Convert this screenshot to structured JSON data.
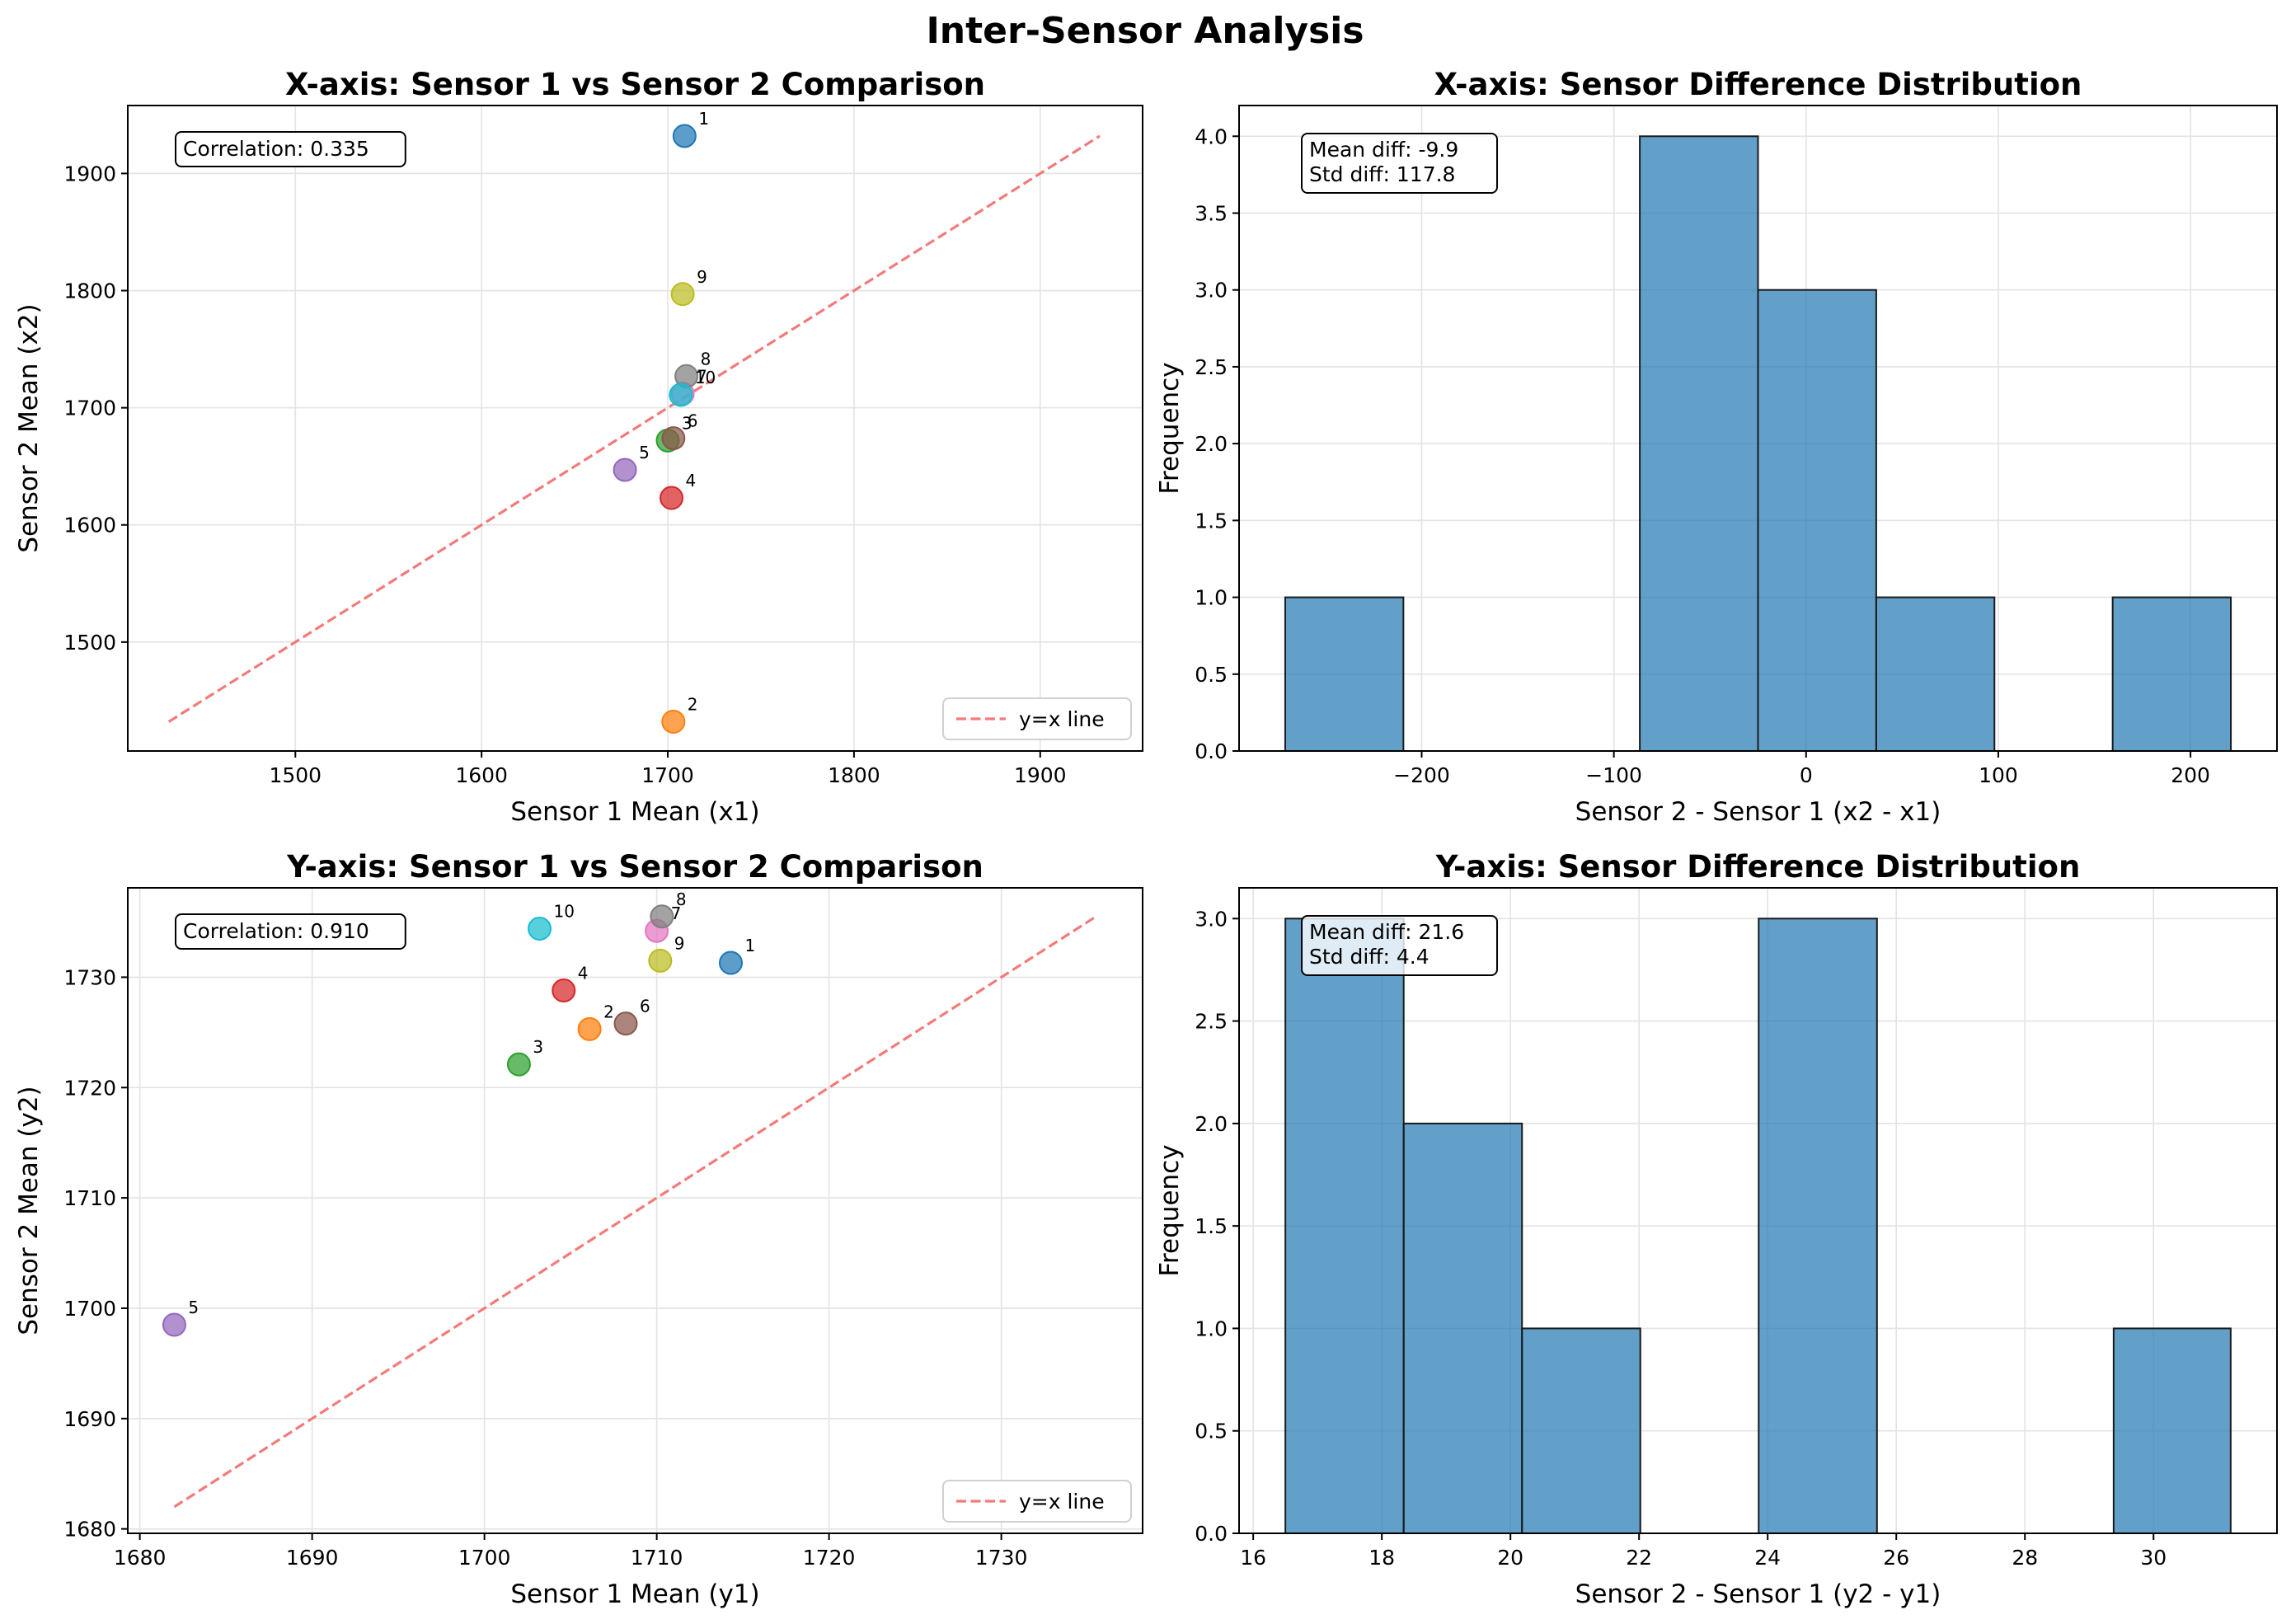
{
  "figure": {
    "title": "Inter-Sensor Analysis"
  },
  "chart_data": [
    {
      "type": "scatter",
      "title": "X-axis: Sensor 1 vs Sensor 2 Comparison",
      "xlabel": "Sensor 1 Mean (x1)",
      "ylabel": "Sensor 2 Mean (x2)",
      "xlim": [
        1410,
        1955
      ],
      "ylim": [
        1407,
        1958
      ],
      "xticks": [
        1500,
        1600,
        1700,
        1800,
        1900
      ],
      "yticks": [
        1500,
        1600,
        1700,
        1800,
        1900
      ],
      "grid": true,
      "legend": {
        "position": "lower-right",
        "entries": [
          "y=x line"
        ]
      },
      "reference_line": {
        "label": "y=x line",
        "color": "#f47a7a",
        "from": [
          1432,
          1432
        ],
        "to": [
          1932,
          1932
        ]
      },
      "annotation": "Correlation: 0.335",
      "points": [
        {
          "label": "1",
          "x": 1709,
          "y": 1932,
          "color": "#1f77b4"
        },
        {
          "label": "2",
          "x": 1703,
          "y": 1432,
          "color": "#ff7f0e"
        },
        {
          "label": "3",
          "x": 1700,
          "y": 1672,
          "color": "#2ca02c"
        },
        {
          "label": "4",
          "x": 1702,
          "y": 1623,
          "color": "#d62728"
        },
        {
          "label": "5",
          "x": 1677,
          "y": 1647,
          "color": "#9467bd"
        },
        {
          "label": "6",
          "x": 1703,
          "y": 1674,
          "color": "#8c564b"
        },
        {
          "label": "7",
          "x": 1708,
          "y": 1712,
          "color": "#e377c2"
        },
        {
          "label": "8",
          "x": 1710,
          "y": 1727,
          "color": "#7f7f7f"
        },
        {
          "label": "9",
          "x": 1708,
          "y": 1797,
          "color": "#bcbd22"
        },
        {
          "label": "10",
          "x": 1707,
          "y": 1711,
          "color": "#17becf"
        }
      ]
    },
    {
      "type": "bar",
      "title": "X-axis: Sensor Difference Distribution",
      "xlabel": "Sensor 2 - Sensor 1 (x2 - x1)",
      "ylabel": "Frequency",
      "xlim": [
        -295,
        245
      ],
      "ylim": [
        0,
        4.2
      ],
      "xticks": [
        -200,
        -100,
        0,
        100,
        200
      ],
      "xtick_labels": [
        "−200",
        "−100",
        "0",
        "100",
        "200"
      ],
      "yticks": [
        0,
        0.5,
        1,
        1.5,
        2,
        2.5,
        3,
        3.5,
        4
      ],
      "ytick_labels": [
        "0.0",
        "0.5",
        "1.0",
        "1.5",
        "2.0",
        "2.5",
        "3.0",
        "3.5",
        "4.0"
      ],
      "grid": true,
      "bar_color": "#1f77b4",
      "bin_edges": [
        -271,
        -209.5,
        -148,
        -86.5,
        -25,
        36.5,
        98,
        159.5,
        221
      ],
      "counts": [
        1,
        0,
        0,
        4,
        3,
        1,
        0,
        1
      ],
      "annotation_lines": [
        "Mean diff: -9.9",
        "Std diff: 117.8"
      ]
    },
    {
      "type": "scatter",
      "title": "Y-axis: Sensor 1 vs Sensor 2 Comparison",
      "xlabel": "Sensor 1 Mean (y1)",
      "ylabel": "Sensor 2 Mean (y2)",
      "xlim": [
        1679.3,
        1738.2
      ],
      "ylim": [
        1679.6,
        1738.1
      ],
      "xticks": [
        1680,
        1690,
        1700,
        1710,
        1720,
        1730
      ],
      "yticks": [
        1680,
        1690,
        1700,
        1710,
        1720,
        1730
      ],
      "grid": true,
      "legend": {
        "position": "lower-right",
        "entries": [
          "y=x line"
        ]
      },
      "reference_line": {
        "label": "y=x line",
        "color": "#f47a7a",
        "from": [
          1682,
          1682
        ],
        "to": [
          1735.5,
          1735.5
        ]
      },
      "annotation": "Correlation: 0.910",
      "points": [
        {
          "label": "1",
          "x": 1714.3,
          "y": 1731.3,
          "color": "#1f77b4"
        },
        {
          "label": "2",
          "x": 1706.1,
          "y": 1725.3,
          "color": "#ff7f0e"
        },
        {
          "label": "3",
          "x": 1702.0,
          "y": 1722.1,
          "color": "#2ca02c"
        },
        {
          "label": "4",
          "x": 1704.6,
          "y": 1728.8,
          "color": "#d62728"
        },
        {
          "label": "5",
          "x": 1682.0,
          "y": 1698.5,
          "color": "#9467bd"
        },
        {
          "label": "6",
          "x": 1708.2,
          "y": 1725.8,
          "color": "#8c564b"
        },
        {
          "label": "7",
          "x": 1710.0,
          "y": 1734.2,
          "color": "#e377c2"
        },
        {
          "label": "8",
          "x": 1710.3,
          "y": 1735.5,
          "color": "#7f7f7f"
        },
        {
          "label": "9",
          "x": 1710.2,
          "y": 1731.5,
          "color": "#bcbd22"
        },
        {
          "label": "10",
          "x": 1703.2,
          "y": 1734.4,
          "color": "#17becf"
        }
      ]
    },
    {
      "type": "bar",
      "title": "Y-axis: Sensor Difference Distribution",
      "xlabel": "Sensor 2 - Sensor 1 (y2 - y1)",
      "ylabel": "Frequency",
      "xlim": [
        15.78,
        31.92
      ],
      "ylim": [
        0,
        3.15
      ],
      "xticks": [
        16,
        18,
        20,
        22,
        24,
        26,
        28,
        30
      ],
      "xtick_labels": [
        "16",
        "18",
        "20",
        "22",
        "24",
        "26",
        "28",
        "30"
      ],
      "yticks": [
        0,
        0.5,
        1,
        1.5,
        2,
        2.5,
        3
      ],
      "ytick_labels": [
        "0.0",
        "0.5",
        "1.0",
        "1.5",
        "2.0",
        "2.5",
        "3.0"
      ],
      "grid": true,
      "bar_color": "#1f77b4",
      "bin_edges": [
        16.5,
        18.34,
        20.18,
        22.02,
        23.86,
        25.7,
        27.54,
        29.38,
        31.2
      ],
      "counts": [
        3,
        2,
        1,
        0,
        3,
        0,
        0,
        1
      ],
      "annotation_lines": [
        "Mean diff: 21.6",
        "Std diff: 4.4"
      ]
    }
  ]
}
